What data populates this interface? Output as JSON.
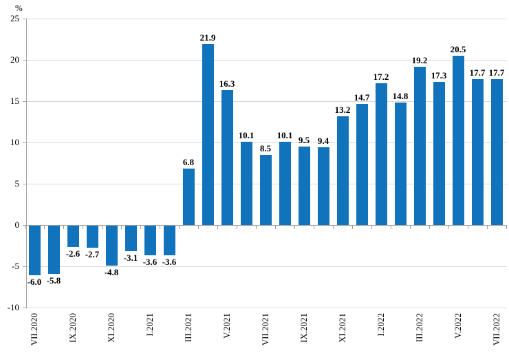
{
  "chart_data": {
    "type": "bar",
    "title": "",
    "y_unit_label": "%",
    "values": [
      -6.0,
      -5.8,
      -2.6,
      -2.7,
      -4.8,
      -3.1,
      -3.6,
      -3.6,
      6.8,
      21.9,
      16.3,
      10.1,
      8.5,
      10.1,
      9.5,
      9.4,
      13.2,
      14.7,
      17.2,
      14.8,
      19.2,
      17.3,
      20.5,
      17.7,
      17.7
    ],
    "bar_value_labels": [
      "-6.0",
      "-5.8",
      "-2.6",
      "-2.7",
      "-4.8",
      "-3.1",
      "-3.6",
      "-3.6",
      "6.8",
      "21.9",
      "16.3",
      "10.1",
      "8.5",
      "10.1",
      "9.5",
      "9.4",
      "13.2",
      "14.7",
      "17.2",
      "14.8",
      "19.2",
      "17.3",
      "20.5",
      "17.7",
      "17.7"
    ],
    "x_axis_labels": [
      "VII.2020",
      "IX.2020",
      "XI.2020",
      "I.2021",
      "III.2021",
      "V.2021",
      "VII.2021",
      "IX.2021",
      "XI.2021",
      "I.2022",
      "III.2022",
      "V.2022",
      "VII.2022"
    ],
    "x_label_every_nth_bar": 2,
    "y_axis_tick_labels": [
      "25",
      "20",
      "15",
      "10",
      "5",
      "0",
      "-5",
      "-10"
    ],
    "y_axis_tick_values": [
      25,
      20,
      15,
      10,
      5,
      0,
      -5,
      -10
    ],
    "ylim": [
      -10,
      25
    ],
    "grid": true,
    "legend": null,
    "x_labels_rotated_degrees": 90,
    "colors": {
      "bar": "#1173BC",
      "gridline": "#D9D9D9",
      "axis": "#A6A6A6",
      "zero_line": "#9C9C9C",
      "label_text": "#000000"
    }
  }
}
